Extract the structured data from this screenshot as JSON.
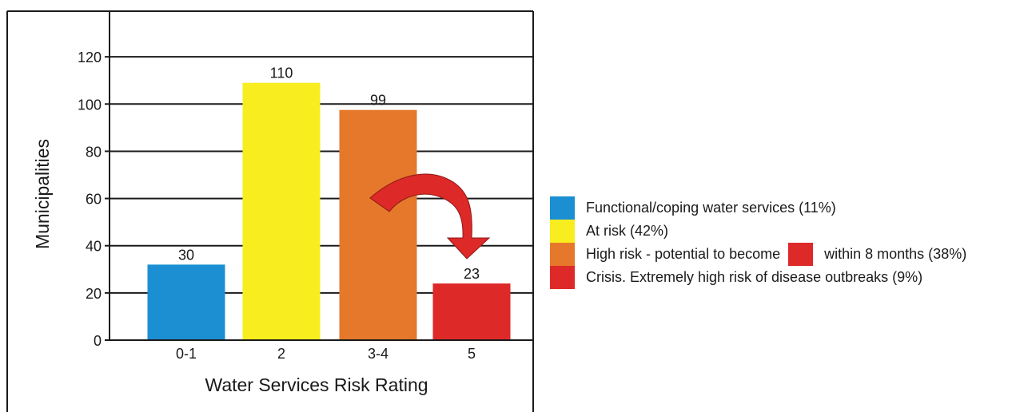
{
  "chart_data": {
    "type": "bar",
    "categories": [
      "0-1",
      "2",
      "3-4",
      "5"
    ],
    "values": [
      30,
      110,
      99,
      23
    ],
    "bar_heights": [
      32,
      109,
      97.5,
      24
    ],
    "colors": [
      "#1b8fd2",
      "#f8ed1e",
      "#e5782a",
      "#dd2927"
    ],
    "xlabel": "Water Services Risk Rating",
    "ylabel": "Municipalities",
    "ylim": [
      0,
      140
    ],
    "yticks": [
      0,
      20,
      40,
      60,
      80,
      100,
      120
    ],
    "grid": true,
    "annotation": "curved arrow from bar 3-4 to bar 5"
  },
  "legend": {
    "items": [
      {
        "color": "#1b8fd2",
        "label": "Functional/coping water services (11%)"
      },
      {
        "color": "#f8ed1e",
        "label": "At risk (42%)"
      },
      {
        "color": "#e5782a",
        "label": "High risk - potential to become",
        "inline_color": "#dd2927",
        "label_after": "within 8 months (38%)"
      },
      {
        "color": "#dd2927",
        "label": "Crisis. Extremely high risk of disease outbreaks (9%)"
      }
    ]
  }
}
